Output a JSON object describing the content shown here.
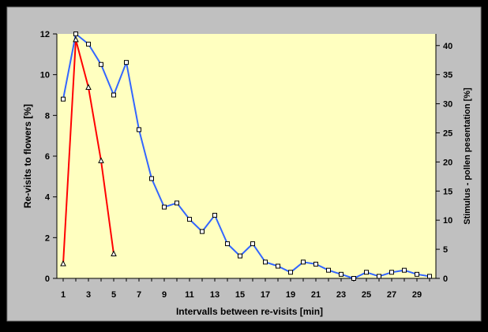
{
  "chart_data": {
    "type": "line",
    "title": "",
    "xlabel": "Intervalls between re-visits [min]",
    "ylabel": "Re-visits to flowers [%]",
    "y2label": "Stimulus - pollen pesentation [%]",
    "xlim": [
      0.5,
      30.5
    ],
    "ylim": [
      0,
      12
    ],
    "y2lim": [
      0,
      42
    ],
    "x_ticks": [
      1,
      3,
      5,
      7,
      9,
      11,
      13,
      15,
      17,
      19,
      21,
      23,
      25,
      27,
      29
    ],
    "x_tick_labels": [
      "1",
      "3",
      "5",
      "7",
      "9",
      "11",
      "13",
      "15",
      "17",
      "19",
      "21",
      "23",
      "25",
      "27",
      "29"
    ],
    "y_ticks": [
      0,
      2,
      4,
      6,
      8,
      10,
      12
    ],
    "y_tick_labels": [
      "0",
      "2",
      "4",
      "6",
      "8",
      "10",
      "12"
    ],
    "y2_ticks": [
      0,
      5,
      10,
      15,
      20,
      25,
      30,
      35,
      40
    ],
    "y2_tick_labels": [
      "0",
      "5",
      "10",
      "15",
      "20",
      "25",
      "30",
      "35",
      "40"
    ],
    "grid": false,
    "legend": "none",
    "series": [
      {
        "axis": "left",
        "color": "#3366ff",
        "marker": "square",
        "x": [
          1,
          2,
          3,
          4,
          5,
          6,
          7,
          8,
          9,
          10,
          11,
          12,
          13,
          14,
          15,
          16,
          17,
          18,
          19,
          20,
          21,
          22,
          23,
          24,
          25,
          26,
          27,
          28,
          29,
          30
        ],
        "values": [
          8.8,
          12.0,
          11.5,
          10.5,
          9.0,
          10.6,
          7.3,
          4.9,
          3.5,
          3.7,
          2.9,
          2.3,
          3.1,
          1.7,
          1.1,
          1.7,
          0.8,
          0.6,
          0.3,
          0.8,
          0.7,
          0.4,
          0.2,
          0.0,
          0.3,
          0.1,
          0.3,
          0.4,
          0.2,
          0.1
        ]
      },
      {
        "axis": "right",
        "color": "#ff0000",
        "marker": "triangle",
        "x": [
          1,
          2,
          3,
          4,
          5
        ],
        "values": [
          2.5,
          41.0,
          32.8,
          20.2,
          4.2
        ]
      }
    ]
  }
}
